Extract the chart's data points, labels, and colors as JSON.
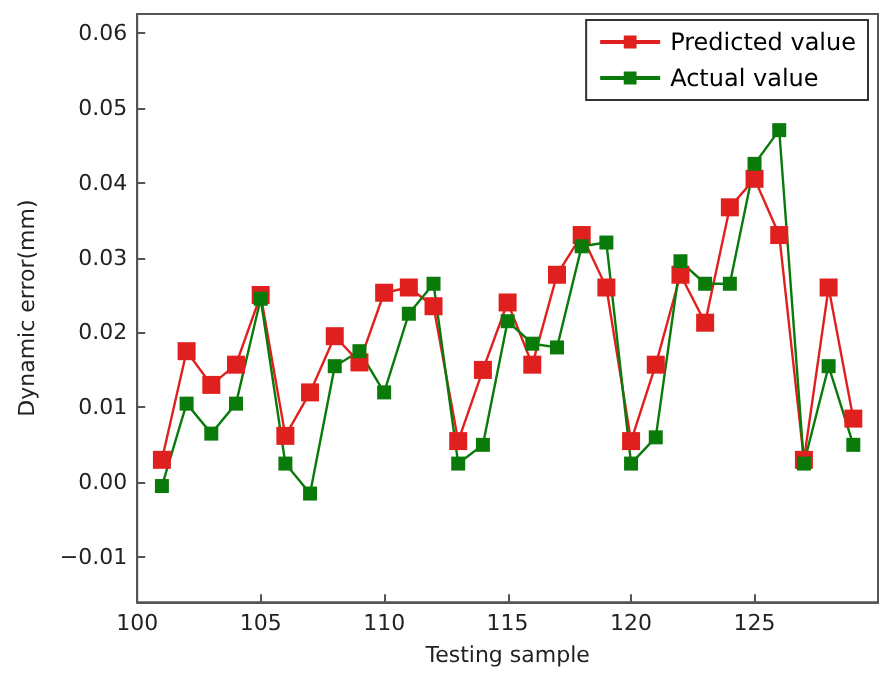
{
  "chart_data": {
    "type": "line",
    "xlabel": "Testing sample",
    "ylabel": "Dynamic error(mm)",
    "x": [
      101,
      102,
      103,
      104,
      105,
      106,
      107,
      108,
      109,
      110,
      111,
      112,
      113,
      114,
      115,
      116,
      117,
      118,
      119,
      120,
      121,
      122,
      123,
      124,
      125,
      126,
      127,
      128,
      129
    ],
    "series": [
      {
        "name": "Predicted value",
        "color": "#e0201e",
        "values": [
          0.003,
          0.0175,
          0.013,
          0.0157,
          0.025,
          0.0062,
          0.012,
          0.0195,
          0.016,
          0.0253,
          0.026,
          0.0235,
          0.0055,
          0.015,
          0.024,
          0.0157,
          0.0277,
          0.033,
          0.026,
          0.0055,
          0.0157,
          0.0277,
          0.0213,
          0.0367,
          0.0405,
          0.033,
          0.003,
          0.026,
          0.0085
        ]
      },
      {
        "name": "Actual value",
        "color": "#0a7a0a",
        "values": [
          -0.0005,
          0.0105,
          0.0065,
          0.0105,
          0.0245,
          0.0025,
          -0.0015,
          0.0155,
          0.0175,
          0.012,
          0.0225,
          0.0265,
          0.0025,
          0.005,
          0.0215,
          0.0185,
          0.018,
          0.0315,
          0.032,
          0.0025,
          0.006,
          0.0295,
          0.0265,
          0.0265,
          0.0425,
          0.047,
          0.0025,
          0.0155,
          0.005
        ]
      }
    ],
    "xlim": [
      100,
      130
    ],
    "xticks": [
      100,
      105,
      110,
      115,
      120,
      125
    ],
    "ylim": [
      -0.016,
      0.0625
    ],
    "yticks": [
      -0.01,
      {
        "value": 0,
        "label": "0.00"
      },
      0.01,
      0.02,
      0.03,
      0.04,
      0.05,
      0.06
    ],
    "grid": false,
    "legend": "top right",
    "marker": "square",
    "line_style": "solid"
  }
}
